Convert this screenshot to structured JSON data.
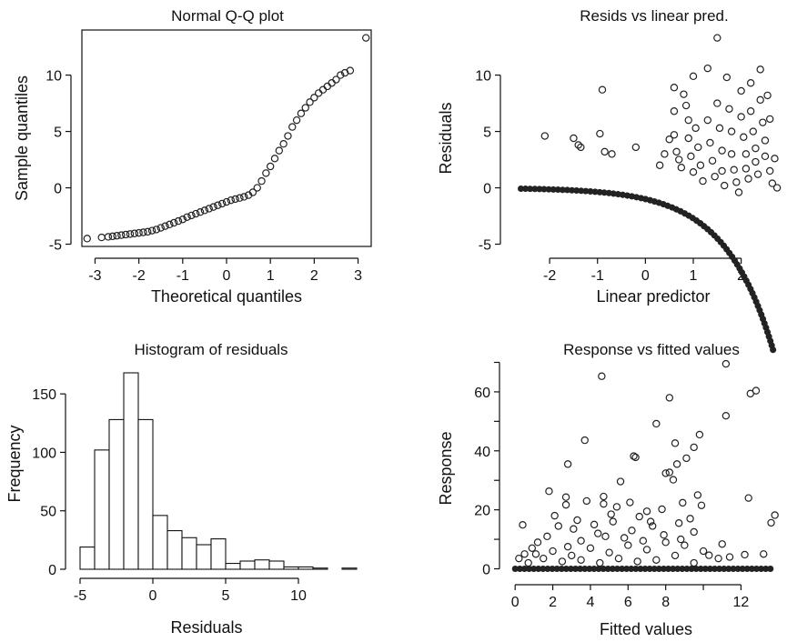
{
  "chart_data": [
    {
      "id": "qq",
      "type": "scatter",
      "title": "Normal Q-Q plot",
      "xlabel": "Theoretical quantiles",
      "ylabel": "Sample quantiles",
      "xlim": [
        -3.3,
        3.3
      ],
      "ylim": [
        -5.2,
        14.0
      ],
      "xticks": [
        -3,
        -2,
        -1,
        0,
        1,
        2,
        3
      ],
      "yticks": [
        -5,
        0,
        5,
        10
      ],
      "box": true,
      "points": [
        [
          -3.18,
          -4.5
        ],
        [
          -2.85,
          -4.4
        ],
        [
          -2.7,
          -4.35
        ],
        [
          -2.6,
          -4.3
        ],
        [
          -2.5,
          -4.25
        ],
        [
          -2.4,
          -4.2
        ],
        [
          -2.3,
          -4.15
        ],
        [
          -2.2,
          -4.1
        ],
        [
          -2.1,
          -4.05
        ],
        [
          -2.0,
          -4.0
        ],
        [
          -1.9,
          -3.95
        ],
        [
          -1.8,
          -3.9
        ],
        [
          -1.7,
          -3.8
        ],
        [
          -1.6,
          -3.7
        ],
        [
          -1.5,
          -3.55
        ],
        [
          -1.4,
          -3.4
        ],
        [
          -1.3,
          -3.25
        ],
        [
          -1.2,
          -3.1
        ],
        [
          -1.1,
          -2.95
        ],
        [
          -1.0,
          -2.8
        ],
        [
          -0.9,
          -2.6
        ],
        [
          -0.8,
          -2.45
        ],
        [
          -0.7,
          -2.3
        ],
        [
          -0.6,
          -2.15
        ],
        [
          -0.5,
          -2.0
        ],
        [
          -0.4,
          -1.85
        ],
        [
          -0.3,
          -1.7
        ],
        [
          -0.2,
          -1.55
        ],
        [
          -0.1,
          -1.4
        ],
        [
          0.0,
          -1.25
        ],
        [
          0.1,
          -1.1
        ],
        [
          0.2,
          -1.0
        ],
        [
          0.3,
          -0.9
        ],
        [
          0.4,
          -0.8
        ],
        [
          0.5,
          -0.65
        ],
        [
          0.6,
          -0.4
        ],
        [
          0.7,
          0.0
        ],
        [
          0.8,
          0.6
        ],
        [
          0.9,
          1.3
        ],
        [
          1.0,
          1.9
        ],
        [
          1.1,
          2.6
        ],
        [
          1.2,
          3.3
        ],
        [
          1.3,
          3.9
        ],
        [
          1.4,
          4.6
        ],
        [
          1.5,
          5.4
        ],
        [
          1.6,
          6.0
        ],
        [
          1.7,
          6.6
        ],
        [
          1.8,
          7.1
        ],
        [
          1.9,
          7.6
        ],
        [
          2.0,
          8.0
        ],
        [
          2.1,
          8.4
        ],
        [
          2.2,
          8.7
        ],
        [
          2.3,
          9.0
        ],
        [
          2.4,
          9.3
        ],
        [
          2.5,
          9.6
        ],
        [
          2.6,
          10.0
        ],
        [
          2.7,
          10.2
        ],
        [
          2.82,
          10.4
        ],
        [
          3.18,
          13.3
        ]
      ]
    },
    {
      "id": "resid",
      "type": "scatter",
      "title": "Resids vs linear pred.",
      "xlabel": "Linear predictor",
      "ylabel": "Residuals",
      "xlim": [
        -2.8,
        2.9
      ],
      "ylim": [
        -5.2,
        14.0
      ],
      "xticks": [
        -2,
        -1,
        0,
        1,
        2
      ],
      "yticks": [
        -5,
        0,
        5,
        10
      ],
      "box": false,
      "curve": {
        "x": [
          -2.6,
          2.7
        ],
        "formula": "-exp(x)",
        "label": ""
      },
      "points": [
        [
          -2.1,
          4.6
        ],
        [
          -1.5,
          4.4
        ],
        [
          -1.4,
          3.8
        ],
        [
          -1.35,
          3.6
        ],
        [
          -0.9,
          8.7
        ],
        [
          -0.95,
          4.8
        ],
        [
          -0.85,
          3.2
        ],
        [
          -0.7,
          3.0
        ],
        [
          -0.2,
          3.6
        ],
        [
          0.3,
          2.0
        ],
        [
          0.4,
          3.0
        ],
        [
          0.5,
          4.3
        ],
        [
          0.6,
          8.9
        ],
        [
          0.6,
          6.8
        ],
        [
          0.6,
          4.7
        ],
        [
          0.65,
          3.2
        ],
        [
          0.7,
          2.5
        ],
        [
          0.75,
          1.8
        ],
        [
          0.8,
          8.3
        ],
        [
          0.85,
          7.3
        ],
        [
          0.9,
          6.0
        ],
        [
          0.9,
          4.4
        ],
        [
          0.95,
          2.8
        ],
        [
          1.0,
          1.4
        ],
        [
          1.0,
          9.9
        ],
        [
          1.05,
          5.3
        ],
        [
          1.1,
          3.6
        ],
        [
          1.15,
          2.0
        ],
        [
          1.2,
          0.6
        ],
        [
          1.3,
          10.6
        ],
        [
          1.3,
          6.0
        ],
        [
          1.35,
          4.0
        ],
        [
          1.4,
          2.4
        ],
        [
          1.45,
          1.0
        ],
        [
          1.5,
          13.3
        ],
        [
          1.5,
          7.5
        ],
        [
          1.55,
          5.3
        ],
        [
          1.6,
          3.3
        ],
        [
          1.6,
          1.5
        ],
        [
          1.65,
          0.2
        ],
        [
          1.7,
          9.8
        ],
        [
          1.75,
          7.0
        ],
        [
          1.8,
          5.0
        ],
        [
          1.8,
          3.0
        ],
        [
          1.85,
          1.6
        ],
        [
          1.9,
          0.5
        ],
        [
          1.95,
          -0.4
        ],
        [
          2.0,
          8.6
        ],
        [
          2.0,
          6.3
        ],
        [
          2.05,
          4.5
        ],
        [
          2.1,
          3.0
        ],
        [
          2.1,
          1.7
        ],
        [
          2.15,
          0.8
        ],
        [
          2.2,
          9.3
        ],
        [
          2.2,
          6.8
        ],
        [
          2.25,
          5.0
        ],
        [
          2.3,
          3.5
        ],
        [
          2.3,
          2.3
        ],
        [
          2.35,
          1.2
        ],
        [
          2.4,
          10.5
        ],
        [
          2.4,
          7.8
        ],
        [
          2.45,
          5.8
        ],
        [
          2.5,
          4.2
        ],
        [
          2.5,
          2.8
        ],
        [
          2.55,
          8.2
        ],
        [
          2.6,
          6.1
        ],
        [
          2.6,
          1.5
        ],
        [
          2.65,
          0.4
        ],
        [
          2.7,
          2.6
        ],
        [
          2.75,
          0.0
        ]
      ]
    },
    {
      "id": "hist",
      "type": "bar",
      "title": "Histogram of residuals",
      "xlabel": "Residuals",
      "ylabel": "Frequency",
      "xlim": [
        -5.5,
        14.5
      ],
      "ylim": [
        0,
        175
      ],
      "xticks": [
        -5,
        0,
        5,
        10
      ],
      "yticks": [
        0,
        50,
        100,
        150
      ],
      "bin_edges": [
        -5,
        -4,
        -3,
        -2,
        -1,
        0,
        1,
        2,
        3,
        4,
        5,
        6,
        7,
        8,
        9,
        10,
        11,
        12,
        13,
        14
      ],
      "values": [
        19,
        102,
        128,
        168,
        128,
        46,
        33,
        27,
        21,
        26,
        5,
        7,
        8,
        7,
        2,
        2,
        1,
        0,
        1
      ]
    },
    {
      "id": "fitted",
      "type": "scatter",
      "title": "Response vs fitted values",
      "xlabel": "Fitted values",
      "ylabel": "Response",
      "xlim": [
        -0.3,
        14.3
      ],
      "ylim": [
        -2,
        72
      ],
      "xticks": [
        0,
        2,
        4,
        6,
        8,
        12
      ],
      "xminor": [
        10
      ],
      "yticks": [
        0,
        20,
        40,
        60
      ],
      "yminor": [
        10,
        30,
        50,
        70
      ],
      "box": false,
      "zero_band": [
        0.0,
        13.6
      ],
      "points": [
        [
          4.6,
          65.3
        ],
        [
          11.2,
          69.5
        ],
        [
          12.8,
          60.4
        ],
        [
          12.5,
          59.4
        ],
        [
          8.2,
          58.0
        ],
        [
          7.5,
          49.2
        ],
        [
          3.7,
          43.6
        ],
        [
          9.8,
          45.5
        ],
        [
          11.2,
          51.9
        ],
        [
          9.5,
          41.2
        ],
        [
          8.5,
          42.6
        ],
        [
          6.3,
          38.2
        ],
        [
          6.4,
          37.8
        ],
        [
          9.1,
          37.5
        ],
        [
          8.6,
          35.5
        ],
        [
          8.2,
          32.7
        ],
        [
          8.0,
          32.4
        ],
        [
          5.6,
          29.6
        ],
        [
          2.8,
          35.5
        ],
        [
          8.4,
          30.2
        ],
        [
          9.7,
          25.0
        ],
        [
          12.4,
          24.0
        ],
        [
          1.8,
          26.3
        ],
        [
          2.7,
          24.3
        ],
        [
          4.7,
          24.5
        ],
        [
          2.7,
          21.7
        ],
        [
          0.4,
          14.9
        ],
        [
          13.8,
          18.2
        ],
        [
          13.6,
          15.6
        ],
        [
          11.0,
          8.4
        ],
        [
          10.3,
          4.6
        ],
        [
          3.8,
          23.0
        ],
        [
          4.7,
          22.0
        ],
        [
          5.4,
          21.0
        ],
        [
          6.1,
          22.5
        ],
        [
          7.0,
          19.5
        ],
        [
          7.8,
          20.2
        ],
        [
          8.9,
          22.4
        ],
        [
          9.9,
          21.5
        ],
        [
          6.6,
          17.7
        ],
        [
          5.2,
          16.0
        ],
        [
          4.2,
          15.0
        ],
        [
          3.1,
          13.5
        ],
        [
          2.3,
          14.5
        ],
        [
          1.7,
          11.0
        ],
        [
          1.2,
          9.0
        ],
        [
          0.9,
          7.0
        ],
        [
          0.5,
          5.0
        ],
        [
          3.5,
          9.5
        ],
        [
          4.8,
          11.0
        ],
        [
          6.2,
          13.0
        ],
        [
          7.3,
          14.5
        ],
        [
          8.7,
          15.5
        ],
        [
          9.5,
          12.5
        ],
        [
          10.8,
          3.5
        ],
        [
          11.4,
          4.0
        ],
        [
          12.2,
          4.8
        ],
        [
          13.2,
          5.0
        ],
        [
          2.0,
          6.0
        ],
        [
          3.0,
          4.5
        ],
        [
          4.0,
          7.0
        ],
        [
          5.0,
          5.5
        ],
        [
          6.0,
          8.0
        ],
        [
          7.0,
          6.5
        ],
        [
          8.0,
          9.0
        ],
        [
          9.0,
          8.0
        ],
        [
          10.0,
          6.0
        ],
        [
          1.5,
          3.5
        ],
        [
          2.5,
          2.5
        ],
        [
          3.5,
          3.0
        ],
        [
          4.5,
          2.0
        ],
        [
          5.5,
          3.5
        ],
        [
          6.5,
          2.5
        ],
        [
          7.5,
          3.0
        ],
        [
          8.5,
          4.5
        ],
        [
          9.5,
          2.0
        ],
        [
          0.2,
          3.5
        ],
        [
          0.7,
          2.0
        ],
        [
          1.1,
          5.0
        ],
        [
          2.8,
          7.5
        ],
        [
          5.8,
          10.5
        ],
        [
          7.9,
          11.5
        ],
        [
          8.8,
          10.0
        ],
        [
          9.3,
          17.0
        ],
        [
          6.8,
          9.5
        ],
        [
          4.4,
          12.0
        ],
        [
          3.3,
          16.5
        ],
        [
          2.1,
          18.0
        ],
        [
          5.1,
          18.5
        ],
        [
          7.2,
          16.0
        ]
      ]
    }
  ]
}
